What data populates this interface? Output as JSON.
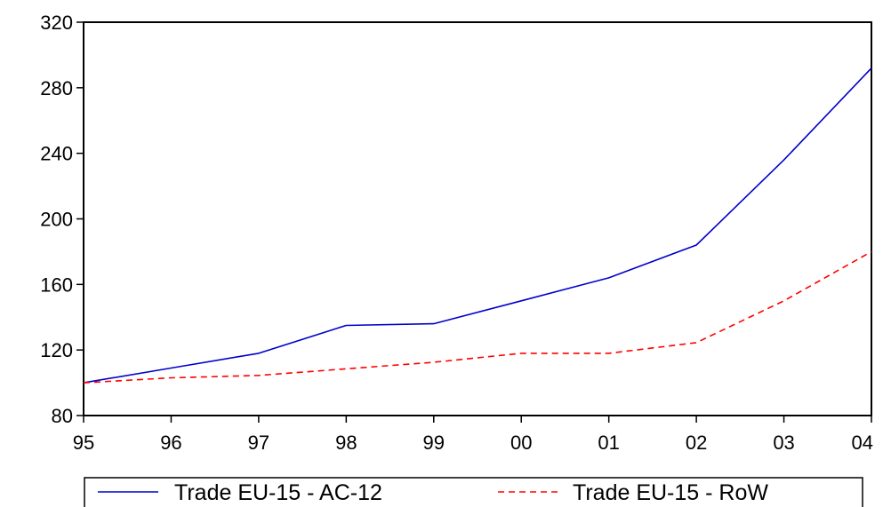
{
  "chart_data": {
    "type": "line",
    "title": "",
    "xlabel": "",
    "ylabel": "",
    "categories": [
      "95",
      "96",
      "97",
      "98",
      "99",
      "00",
      "01",
      "02",
      "03",
      "04"
    ],
    "ylim": [
      80,
      320
    ],
    "yticks": [
      80,
      120,
      160,
      200,
      240,
      280,
      320
    ],
    "grid": false,
    "legend_position": "bottom",
    "series": [
      {
        "name": "Trade EU-15 - AC-12",
        "values": [
          100,
          109,
          118,
          135,
          136,
          150,
          164,
          184,
          236,
          292
        ],
        "color": "#0000cc",
        "dash": "solid"
      },
      {
        "name": "Trade EU-15 - RoW",
        "values": [
          100,
          103,
          104.5,
          108.5,
          112.5,
          118,
          118,
          124.5,
          150,
          180
        ],
        "color": "#ff0000",
        "dash": "dashed"
      }
    ]
  }
}
